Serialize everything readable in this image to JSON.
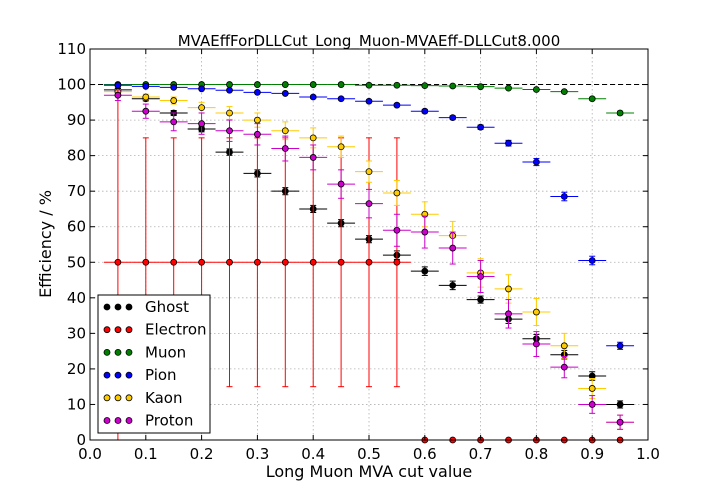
{
  "chart_data": {
    "type": "scatter",
    "title": "MVAEffForDLLCut_Long_Muon-MVAEff-DLLCut8.000",
    "xlabel": "Long Muon MVA cut value",
    "ylabel": "Efficiency / %",
    "xlim": [
      0.0,
      1.0
    ],
    "ylim": [
      0,
      110
    ],
    "xticks": [
      "0.0",
      "0.1",
      "0.2",
      "0.3",
      "0.4",
      "0.5",
      "0.6",
      "0.7",
      "0.8",
      "0.9",
      "1.0"
    ],
    "yticks": [
      "0",
      "10",
      "20",
      "30",
      "40",
      "50",
      "60",
      "70",
      "80",
      "90",
      "100",
      "110"
    ],
    "x_halfwidth": 0.025,
    "grid": true,
    "reference_line": 100,
    "legend_position": "lower-left",
    "series": [
      {
        "name": "Ghost",
        "color": "#000000",
        "x": [
          0.05,
          0.1,
          0.15,
          0.2,
          0.25,
          0.3,
          0.35,
          0.4,
          0.45,
          0.5,
          0.55,
          0.6,
          0.65,
          0.7,
          0.75,
          0.8,
          0.85,
          0.9,
          0.95
        ],
        "y": [
          98.5,
          96.0,
          92.0,
          87.5,
          81.0,
          75.0,
          70.0,
          65.0,
          61.0,
          56.5,
          52.0,
          47.5,
          43.5,
          39.5,
          34.0,
          28.5,
          24.0,
          18.0,
          10.0
        ],
        "yerr": [
          0.5,
          0.6,
          0.7,
          0.8,
          0.9,
          1.0,
          1.0,
          1.0,
          1.0,
          1.0,
          1.2,
          1.2,
          1.2,
          1.0,
          1.2,
          1.2,
          1.2,
          1.2,
          1.0
        ]
      },
      {
        "name": "Electron",
        "color": "#ff0000",
        "x": [
          0.05,
          0.1,
          0.15,
          0.2,
          0.25,
          0.3,
          0.35,
          0.4,
          0.45,
          0.5,
          0.55,
          0.6,
          0.65,
          0.7,
          0.75,
          0.8,
          0.85,
          0.9,
          0.95
        ],
        "y": [
          50,
          50,
          50,
          50,
          50,
          50,
          50,
          50,
          50,
          50,
          50,
          0,
          0,
          0,
          0,
          0,
          0,
          0,
          0
        ],
        "yerr_low": [
          50,
          35,
          35,
          35,
          35,
          35,
          35,
          35,
          35,
          35,
          35,
          0,
          0,
          0,
          0,
          0,
          0,
          0,
          0
        ],
        "yerr_high": [
          50,
          35,
          35,
          35,
          35,
          35,
          35,
          35,
          35,
          35,
          35,
          0,
          0,
          0,
          0,
          0,
          0,
          0,
          0
        ]
      },
      {
        "name": "Muon",
        "color": "#008000",
        "x": [
          0.05,
          0.1,
          0.15,
          0.2,
          0.25,
          0.3,
          0.35,
          0.4,
          0.45,
          0.5,
          0.55,
          0.6,
          0.65,
          0.7,
          0.75,
          0.8,
          0.85,
          0.9,
          0.95
        ],
        "y": [
          100,
          100,
          100,
          100,
          100,
          100,
          100,
          100,
          100,
          99.8,
          99.8,
          99.7,
          99.6,
          99.4,
          99.0,
          98.6,
          98.0,
          96.0,
          92.0
        ],
        "yerr": [
          0.1,
          0.1,
          0.1,
          0.1,
          0.1,
          0.1,
          0.1,
          0.1,
          0.1,
          0.1,
          0.1,
          0.1,
          0.1,
          0.2,
          0.2,
          0.2,
          0.3,
          0.4,
          0.5
        ]
      },
      {
        "name": "Pion",
        "color": "#0000ff",
        "x": [
          0.05,
          0.1,
          0.15,
          0.2,
          0.25,
          0.3,
          0.35,
          0.4,
          0.45,
          0.5,
          0.55,
          0.6,
          0.65,
          0.7,
          0.75,
          0.8,
          0.85,
          0.9,
          0.95
        ],
        "y": [
          99.8,
          99.5,
          99.2,
          98.8,
          98.4,
          97.8,
          97.5,
          96.5,
          96.0,
          95.3,
          94.2,
          92.5,
          90.7,
          88.0,
          83.5,
          78.2,
          68.5,
          50.5,
          26.5
        ],
        "yerr": [
          0.2,
          0.2,
          0.2,
          0.2,
          0.2,
          0.3,
          0.3,
          0.3,
          0.3,
          0.4,
          0.4,
          0.5,
          0.5,
          0.6,
          0.8,
          1.0,
          1.2,
          1.2,
          1.0
        ]
      },
      {
        "name": "Kaon",
        "color": "#ffcc00",
        "x": [
          0.05,
          0.1,
          0.15,
          0.2,
          0.25,
          0.3,
          0.35,
          0.4,
          0.45,
          0.5,
          0.55,
          0.6,
          0.65,
          0.7,
          0.75,
          0.8,
          0.85,
          0.9,
          0.95
        ],
        "y": [
          98.0,
          96.5,
          95.5,
          93.5,
          92.0,
          90.0,
          87.0,
          85.0,
          82.5,
          75.5,
          69.5,
          63.5,
          57.5,
          47.0,
          42.5,
          36.0,
          26.5,
          14.5,
          5.0
        ],
        "yerr": [
          0.6,
          0.8,
          1.0,
          1.5,
          1.8,
          2.0,
          2.5,
          2.8,
          3.0,
          3.0,
          3.5,
          3.5,
          4.0,
          4.0,
          4.0,
          3.8,
          3.5,
          2.8,
          2.0
        ]
      },
      {
        "name": "Proton",
        "color": "#cc00cc",
        "x": [
          0.05,
          0.1,
          0.15,
          0.2,
          0.25,
          0.3,
          0.35,
          0.4,
          0.45,
          0.5,
          0.55,
          0.6,
          0.65,
          0.7,
          0.75,
          0.8,
          0.85,
          0.9,
          0.95
        ],
        "y": [
          97.0,
          92.5,
          89.5,
          89.0,
          87.0,
          86.0,
          82.0,
          79.5,
          72.0,
          66.5,
          59.0,
          58.5,
          54.0,
          46.0,
          35.5,
          27.0,
          20.5,
          10.0,
          5.0
        ],
        "yerr": [
          1.5,
          2.0,
          2.5,
          3.0,
          3.0,
          3.0,
          3.5,
          3.5,
          4.0,
          4.0,
          4.5,
          4.5,
          4.5,
          4.5,
          4.0,
          3.5,
          3.0,
          2.5,
          2.0
        ]
      }
    ]
  }
}
